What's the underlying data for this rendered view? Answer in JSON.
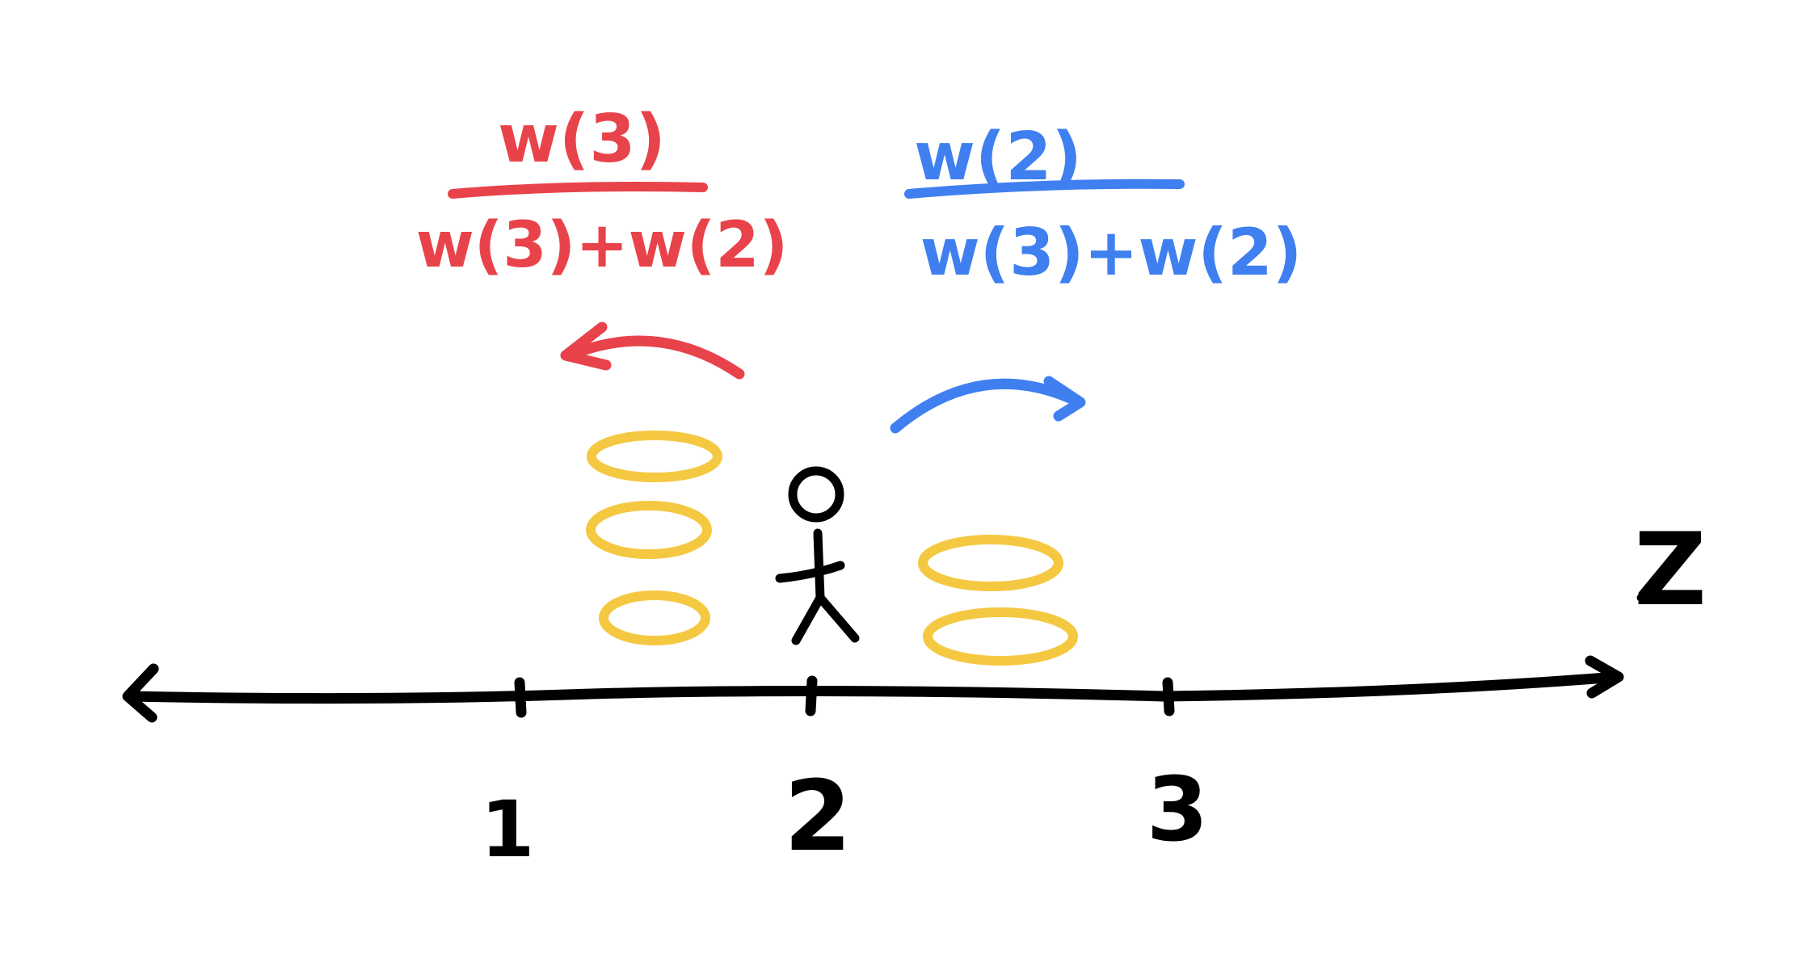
{
  "colors": {
    "left_move": "#e8434b",
    "right_move": "#3f7ff0",
    "coin": "#f5c842",
    "ink": "#000000",
    "background": "#ffffff"
  },
  "left_probability": {
    "numerator": "w(3)",
    "denominator": "w(3)+w(2)"
  },
  "right_probability": {
    "numerator": "w(2)",
    "denominator": "w(3)+w(2)"
  },
  "axis": {
    "label": "Z",
    "ticks": [
      "1",
      "2",
      "3"
    ]
  },
  "walker": {
    "position": "2"
  },
  "coins": {
    "left_stack_count": 3,
    "right_stack_count": 2
  },
  "icons": {
    "walker": "stick-figure-icon",
    "coin": "coin-icon",
    "left_arrow": "curved-arrow-left-icon",
    "right_arrow": "curved-arrow-right-icon"
  }
}
